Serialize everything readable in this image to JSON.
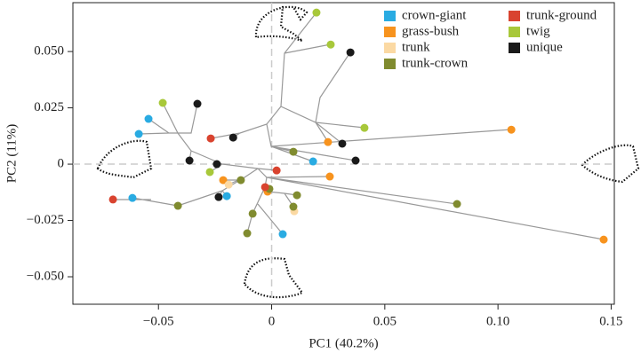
{
  "chart_data": {
    "type": "scatter",
    "x_label": "PC1 (40.2%)",
    "y_label": "PC2 (11%)",
    "xlim": [
      -0.0878,
      0.1514
    ],
    "ylim": [
      -0.0622,
      0.0717
    ],
    "xticks": [
      {
        "value": -0.05,
        "label": "−0.05"
      },
      0,
      0.05,
      {
        "value": 0.1,
        "label": "0.10"
      },
      0.15
    ],
    "yticks": [
      {
        "value": -0.05,
        "label": "−0.050"
      },
      {
        "value": -0.025,
        "label": "−0.025"
      },
      0,
      0.025,
      {
        "value": 0.05,
        "label": "0.050"
      }
    ],
    "series": [
      {
        "name": "crown-giant",
        "color": "#29abe2",
        "x": [
          -0.0544,
          -0.0587,
          0.0183,
          -0.0198,
          0.0049,
          -0.0615
        ],
        "y": [
          0.0201,
          0.0134,
          0.0012,
          -0.0142,
          -0.0311,
          -0.015
        ]
      },
      {
        "name": "grass-bush",
        "color": "#f7931e",
        "x": [
          0.1059,
          0.0249,
          0.0257,
          0.1467,
          -0.0214,
          -0.0018
        ],
        "y": [
          0.0153,
          0.0098,
          -0.0055,
          -0.0335,
          -0.0071,
          -0.0122
        ]
      },
      {
        "name": "trunk",
        "color": "#fbd9a3",
        "x": [
          -0.019,
          0.01
        ],
        "y": [
          -0.0091,
          -0.0209
        ]
      },
      {
        "name": "trunk-crown",
        "color": "#808b2f",
        "x": [
          0.0096,
          0.0819,
          -0.0136,
          -0.001,
          0.0112,
          0.0096,
          -0.0084,
          -0.0108,
          -0.0414
        ],
        "y": [
          0.0055,
          -0.0177,
          -0.0071,
          -0.011,
          -0.0138,
          -0.0189,
          -0.022,
          -0.0307,
          -0.0185
        ]
      },
      {
        "name": "trunk-ground",
        "color": "#d9432f",
        "x": [
          -0.0269,
          0.0022,
          -0.0029,
          -0.0701
        ],
        "y": [
          0.0114,
          -0.0028,
          -0.0102,
          -0.0157
        ]
      },
      {
        "name": "twig",
        "color": "#a8c83a",
        "x": [
          0.0198,
          0.0261,
          -0.0481,
          0.041,
          -0.0273
        ],
        "y": [
          0.0673,
          0.0531,
          0.0272,
          0.0161,
          -0.0035
        ]
      },
      {
        "name": "unique",
        "color": "#1a1a1a",
        "x": [
          0.0348,
          -0.0328,
          -0.017,
          0.0312,
          0.0371,
          -0.0363,
          -0.0242,
          -0.0234
        ],
        "y": [
          0.0496,
          0.0268,
          0.0118,
          0.0091,
          0.0016,
          0.0016,
          0,
          -0.0146
        ]
      }
    ]
  }
}
